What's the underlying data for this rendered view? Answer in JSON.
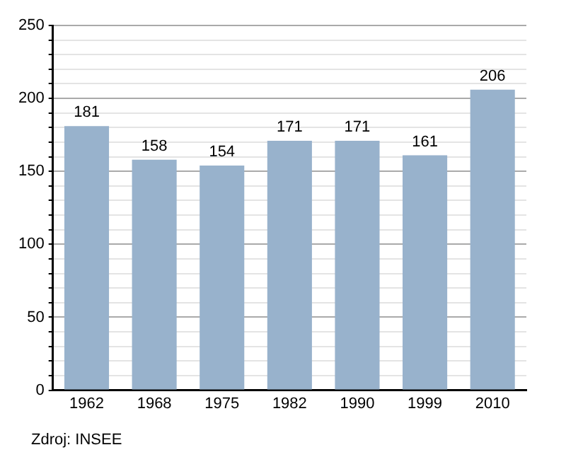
{
  "chart_data": {
    "type": "bar",
    "categories": [
      "1962",
      "1968",
      "1975",
      "1982",
      "1990",
      "1999",
      "2010"
    ],
    "values": [
      181,
      158,
      154,
      171,
      171,
      161,
      206
    ],
    "color": "#98b2cc",
    "ylim": [
      0,
      250
    ],
    "yticks": [
      0,
      {
        "value": 10,
        "label": null
      },
      {
        "value": 20,
        "label": null
      },
      {
        "value": 30,
        "label": null
      },
      {
        "value": 40,
        "label": null
      },
      50,
      {
        "value": 60,
        "label": null
      },
      {
        "value": 70,
        "label": null
      },
      {
        "value": 80,
        "label": null
      },
      {
        "value": 90,
        "label": null
      },
      100,
      {
        "value": 110,
        "label": null
      },
      {
        "value": 120,
        "label": null
      },
      {
        "value": 130,
        "label": null
      },
      {
        "value": 140,
        "label": null
      },
      150,
      {
        "value": 160,
        "label": null
      },
      {
        "value": 170,
        "label": null
      },
      {
        "value": 180,
        "label": null
      },
      {
        "value": 190,
        "label": null
      },
      200,
      {
        "value": 210,
        "label": null
      },
      {
        "value": 220,
        "label": null
      },
      {
        "value": 230,
        "label": null
      },
      {
        "value": 240,
        "label": null
      },
      250
    ],
    "grid": "y",
    "data_labels": true,
    "legend": false,
    "annotations": [
      "Zdroj: INSEE"
    ]
  }
}
